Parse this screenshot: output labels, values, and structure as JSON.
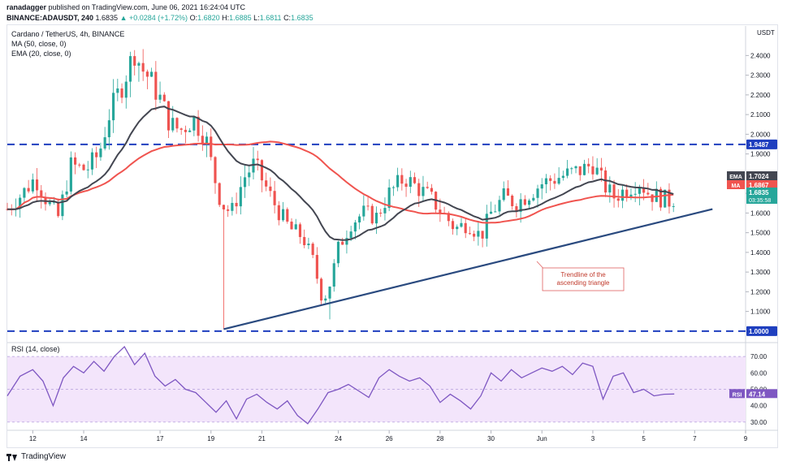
{
  "header": {
    "author": "ranadagger",
    "published_text": "published on TradingView.com, June 06, 2021 16:24:04 UTC",
    "symbol": "BINANCE:ADAUSDT, 240",
    "last": "1.6835",
    "change": "▲ +0.0284 (+1.72%)",
    "o_label": "O:",
    "o": "1.6820",
    "h_label": "H:",
    "h": "1.6885",
    "l_label": "L:",
    "l": "1.6811",
    "c_label": "C:",
    "c": "1.6835"
  },
  "legend": {
    "title": "Cardano / TetherUS, 4h, BINANCE",
    "ma": "MA (50, close, 0)",
    "ema": "EMA (20, close, 0)"
  },
  "rsi_legend": "RSI (14, close)",
  "footer": {
    "brand": "TradingView"
  },
  "colors": {
    "up": "#26a69a",
    "down": "#ef5350",
    "ema": "#434651",
    "ma": "#f0544f",
    "trend": "#2a4a7f",
    "hline": "#1f3fbf",
    "rsi": "#7e57c2",
    "rsi_band": "#f3e5fb"
  },
  "chart_data": [
    {
      "type": "candlestick",
      "title": "Cardano / TetherUS, 4h, BINANCE",
      "price_axis_unit": "USDT",
      "ylim": [
        0.95,
        2.55
      ],
      "y_ticks": [
        "2.4000",
        "2.3000",
        "2.2000",
        "2.1000",
        "2.0000",
        "1.9000",
        "1.8000",
        "1.7000",
        "1.6000",
        "1.5000",
        "1.4000",
        "1.3000",
        "1.2000",
        "1.1000"
      ],
      "x_ticks": [
        {
          "label": "12",
          "day": 12
        },
        {
          "label": "14",
          "day": 14
        },
        {
          "label": "17",
          "day": 17
        },
        {
          "label": "19",
          "day": 19
        },
        {
          "label": "21",
          "day": 21
        },
        {
          "label": "24",
          "day": 24
        },
        {
          "label": "26",
          "day": 26
        },
        {
          "label": "28",
          "day": 28
        },
        {
          "label": "30",
          "day": 30
        },
        {
          "label": "Jun",
          "day": 32
        },
        {
          "label": "3",
          "day": 34
        },
        {
          "label": "5",
          "day": 36
        },
        {
          "label": "7",
          "day": 38
        },
        {
          "label": "9",
          "day": 40
        }
      ],
      "x_range_days": [
        11.0,
        40.0
      ],
      "price_path": [
        [
          11.0,
          1.62
        ],
        [
          11.6,
          1.7
        ],
        [
          12.1,
          1.78
        ],
        [
          12.6,
          1.65
        ],
        [
          13.0,
          1.58
        ],
        [
          13.5,
          1.84
        ],
        [
          14.1,
          1.82
        ],
        [
          14.6,
          1.9
        ],
        [
          15.0,
          2.1
        ],
        [
          15.5,
          2.25
        ],
        [
          16.0,
          2.42
        ],
        [
          16.3,
          2.33
        ],
        [
          16.6,
          2.28
        ],
        [
          17.0,
          2.18
        ],
        [
          17.4,
          2.05
        ],
        [
          17.8,
          2.02
        ],
        [
          18.3,
          2.08
        ],
        [
          18.8,
          1.98
        ],
        [
          19.1,
          1.8
        ],
        [
          19.4,
          1.65
        ],
        [
          19.8,
          1.6
        ],
        [
          20.3,
          1.78
        ],
        [
          20.7,
          1.85
        ],
        [
          21.2,
          1.72
        ],
        [
          21.6,
          1.62
        ],
        [
          22.1,
          1.52
        ],
        [
          22.6,
          1.48
        ],
        [
          23.0,
          1.36
        ],
        [
          23.4,
          1.15
        ],
        [
          23.7,
          1.25
        ],
        [
          24.0,
          1.42
        ],
        [
          24.5,
          1.55
        ],
        [
          25.0,
          1.6
        ],
        [
          25.5,
          1.58
        ],
        [
          26.0,
          1.7
        ],
        [
          26.6,
          1.78
        ],
        [
          27.1,
          1.73
        ],
        [
          27.6,
          1.68
        ],
        [
          28.1,
          1.6
        ],
        [
          28.6,
          1.52
        ],
        [
          29.1,
          1.55
        ],
        [
          29.6,
          1.48
        ],
        [
          30.0,
          1.6
        ],
        [
          30.5,
          1.68
        ],
        [
          31.0,
          1.65
        ],
        [
          31.5,
          1.7
        ],
        [
          32.0,
          1.75
        ],
        [
          32.6,
          1.78
        ],
        [
          33.1,
          1.8
        ],
        [
          33.6,
          1.82
        ],
        [
          34.0,
          1.85
        ],
        [
          34.4,
          1.75
        ],
        [
          34.8,
          1.68
        ],
        [
          35.3,
          1.72
        ],
        [
          35.8,
          1.76
        ],
        [
          36.2,
          1.7
        ],
        [
          36.6,
          1.68
        ],
        [
          37.0,
          1.66
        ],
        [
          37.3,
          1.6835
        ]
      ],
      "price_labels": [
        {
          "name": "EMA",
          "value": "1.7024"
        },
        {
          "name": "MA",
          "value": "1.6867"
        },
        {
          "name": "",
          "value": "1.6835",
          "sub": "03:35:58"
        }
      ],
      "level_labels": [
        {
          "value": "1.9487"
        },
        {
          "value": "1.0000"
        }
      ],
      "horizontal_lines": [
        1.9487,
        1.0
      ],
      "trendline": {
        "from": [
          19.5,
          1.01
        ],
        "to": [
          38.7,
          1.62
        ]
      },
      "annotation": "Trendline of the\nascending triangle"
    },
    {
      "type": "line",
      "title": "RSI (14, close)",
      "ylim": [
        25,
        78
      ],
      "y_ticks": [
        "70.00",
        "60.00",
        "50.00",
        "40.00",
        "30.00"
      ],
      "band": [
        30,
        70
      ],
      "last_value": "47.14",
      "x": [
        11.0,
        11.5,
        12.0,
        12.4,
        12.8,
        13.2,
        13.6,
        14.0,
        14.4,
        14.8,
        15.2,
        15.6,
        16.0,
        16.4,
        16.8,
        17.2,
        17.6,
        18.0,
        18.4,
        18.8,
        19.2,
        19.6,
        20.0,
        20.4,
        20.8,
        21.2,
        21.6,
        22.0,
        22.4,
        22.8,
        23.2,
        23.6,
        24.0,
        24.4,
        24.8,
        25.2,
        25.6,
        26.0,
        26.4,
        26.8,
        27.2,
        27.6,
        28.0,
        28.4,
        28.8,
        29.2,
        29.6,
        30.0,
        30.4,
        30.8,
        31.2,
        31.6,
        32.0,
        32.4,
        32.8,
        33.2,
        33.6,
        34.0,
        34.4,
        34.8,
        35.2,
        35.6,
        36.0,
        36.4,
        36.8,
        37.2
      ],
      "values": [
        46,
        58,
        62,
        55,
        40,
        57,
        64,
        60,
        67,
        61,
        70,
        76,
        65,
        72,
        58,
        52,
        56,
        50,
        48,
        42,
        36,
        43,
        32,
        44,
        47,
        42,
        38,
        43,
        34,
        29,
        38,
        48,
        50,
        53,
        49,
        45,
        57,
        62,
        58,
        55,
        57,
        52,
        42,
        47,
        43,
        38,
        46,
        60,
        55,
        62,
        57,
        60,
        63,
        61,
        64,
        59,
        66,
        64,
        44,
        58,
        60,
        48,
        50,
        46,
        47,
        47.14
      ]
    }
  ]
}
